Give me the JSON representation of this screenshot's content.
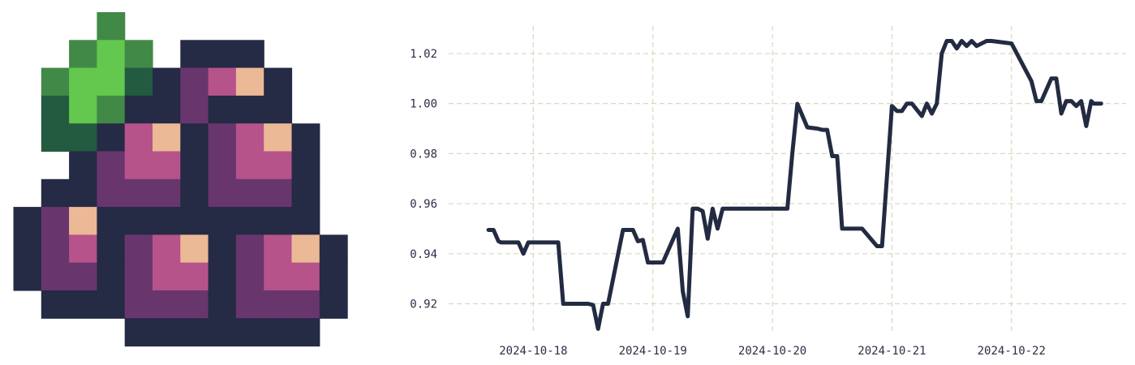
{
  "icon": {
    "name": "grape-bunch-pixel-icon",
    "palette": {
      "dark": "#252a45",
      "purple": "#68366d",
      "pink": "#b5538a",
      "peach": "#ebb995",
      "leaf": "#418947",
      "leaf_light": "#63c84d",
      "leaf_dark": "#225b40"
    }
  },
  "chart_data": {
    "type": "line",
    "title": "",
    "xlabel": "",
    "ylabel": "",
    "line_color": "#232b42",
    "grid_color": "#d6d9c0",
    "grid": true,
    "xlim": [
      "2024-10-17 07:00",
      "2024-10-22 23:00"
    ],
    "ylim": [
      0.9085,
      1.031
    ],
    "x_ticks": [
      "2024-10-18",
      "2024-10-19",
      "2024-10-20",
      "2024-10-21",
      "2024-10-22"
    ],
    "y_ticks": [
      0.92,
      0.94,
      0.96,
      0.98,
      1.0,
      1.02
    ],
    "y_tick_labels": [
      "0.92",
      "0.94",
      "0.96",
      "0.98",
      "1.00",
      "1.02"
    ],
    "series": [
      {
        "name": "",
        "x": [
          "2024-10-17 15:00",
          "2024-10-17 16:00",
          "2024-10-17 17:00",
          "2024-10-17 17:30",
          "2024-10-17 19:00",
          "2024-10-17 21:00",
          "2024-10-17 22:00",
          "2024-10-17 23:00",
          "2024-10-17 23:30",
          "2024-10-18 00:00",
          "2024-10-18 04:00",
          "2024-10-18 05:00",
          "2024-10-18 06:00",
          "2024-10-18 08:00",
          "2024-10-18 08:30",
          "2024-10-18 11:00",
          "2024-10-18 12:00",
          "2024-10-18 13:00",
          "2024-10-18 14:00",
          "2024-10-18 15:00",
          "2024-10-18 18:00",
          "2024-10-18 20:00",
          "2024-10-18 21:00",
          "2024-10-18 22:00",
          "2024-10-18 23:00",
          "2024-10-19 00:00",
          "2024-10-19 01:00",
          "2024-10-19 02:00",
          "2024-10-19 05:00",
          "2024-10-19 06:00",
          "2024-10-19 07:00",
          "2024-10-19 08:00",
          "2024-10-19 09:00",
          "2024-10-19 10:00",
          "2024-10-19 11:00",
          "2024-10-19 12:00",
          "2024-10-19 13:00",
          "2024-10-19 14:00",
          "2024-10-19 15:00",
          "2024-10-19 16:00",
          "2024-10-19 18:00",
          "2024-10-20 00:00",
          "2024-10-20 03:00",
          "2024-10-20 04:00",
          "2024-10-20 05:00",
          "2024-10-20 07:00",
          "2024-10-20 09:00",
          "2024-10-20 10:00",
          "2024-10-20 11:00",
          "2024-10-20 12:00",
          "2024-10-20 13:00",
          "2024-10-20 14:00",
          "2024-10-20 17:00",
          "2024-10-20 18:00",
          "2024-10-20 21:00",
          "2024-10-20 22:00",
          "2024-10-21 00:00",
          "2024-10-21 01:00",
          "2024-10-21 02:00",
          "2024-10-21 03:00",
          "2024-10-21 04:00",
          "2024-10-21 06:00",
          "2024-10-21 07:00",
          "2024-10-21 08:00",
          "2024-10-21 09:00",
          "2024-10-21 10:00",
          "2024-10-21 11:00",
          "2024-10-21 12:00",
          "2024-10-21 13:00",
          "2024-10-21 14:00",
          "2024-10-21 15:00",
          "2024-10-21 16:00",
          "2024-10-21 17:00",
          "2024-10-21 19:00",
          "2024-10-21 20:00",
          "2024-10-22 00:00",
          "2024-10-22 04:00",
          "2024-10-22 05:00",
          "2024-10-22 06:00",
          "2024-10-22 08:00",
          "2024-10-22 09:00",
          "2024-10-22 10:00",
          "2024-10-22 11:00",
          "2024-10-22 12:00",
          "2024-10-22 13:00",
          "2024-10-22 14:00",
          "2024-10-22 15:00",
          "2024-10-22 16:00",
          "2024-10-22 16:30",
          "2024-10-22 17:00",
          "2024-10-22 18:00"
        ],
        "values": [
          0.9495,
          0.9495,
          0.945,
          0.9445,
          0.9445,
          0.9445,
          0.94,
          0.9445,
          0.9445,
          0.9445,
          0.9445,
          0.9445,
          0.92,
          0.92,
          0.92,
          0.92,
          0.9195,
          0.91,
          0.92,
          0.92,
          0.9495,
          0.9495,
          0.945,
          0.9455,
          0.9365,
          0.9365,
          0.9365,
          0.9365,
          0.95,
          0.925,
          0.915,
          0.958,
          0.958,
          0.957,
          0.946,
          0.958,
          0.95,
          0.958,
          0.958,
          0.958,
          0.958,
          0.958,
          0.958,
          0.98,
          0.9999,
          0.9905,
          0.99,
          0.9895,
          0.9895,
          0.979,
          0.979,
          0.95,
          0.95,
          0.95,
          0.943,
          0.943,
          0.999,
          0.997,
          0.997,
          1.0,
          1.0,
          0.995,
          1.0,
          0.996,
          1.0,
          1.02,
          1.025,
          1.025,
          1.022,
          1.025,
          1.023,
          1.025,
          1.023,
          1.025,
          1.025,
          1.024,
          1.009,
          1.001,
          1.001,
          1.01,
          1.01,
          0.996,
          1.001,
          1.001,
          0.999,
          1.001,
          0.991,
          1.001,
          1.0,
          1.0,
          1.0
        ]
      }
    ]
  }
}
